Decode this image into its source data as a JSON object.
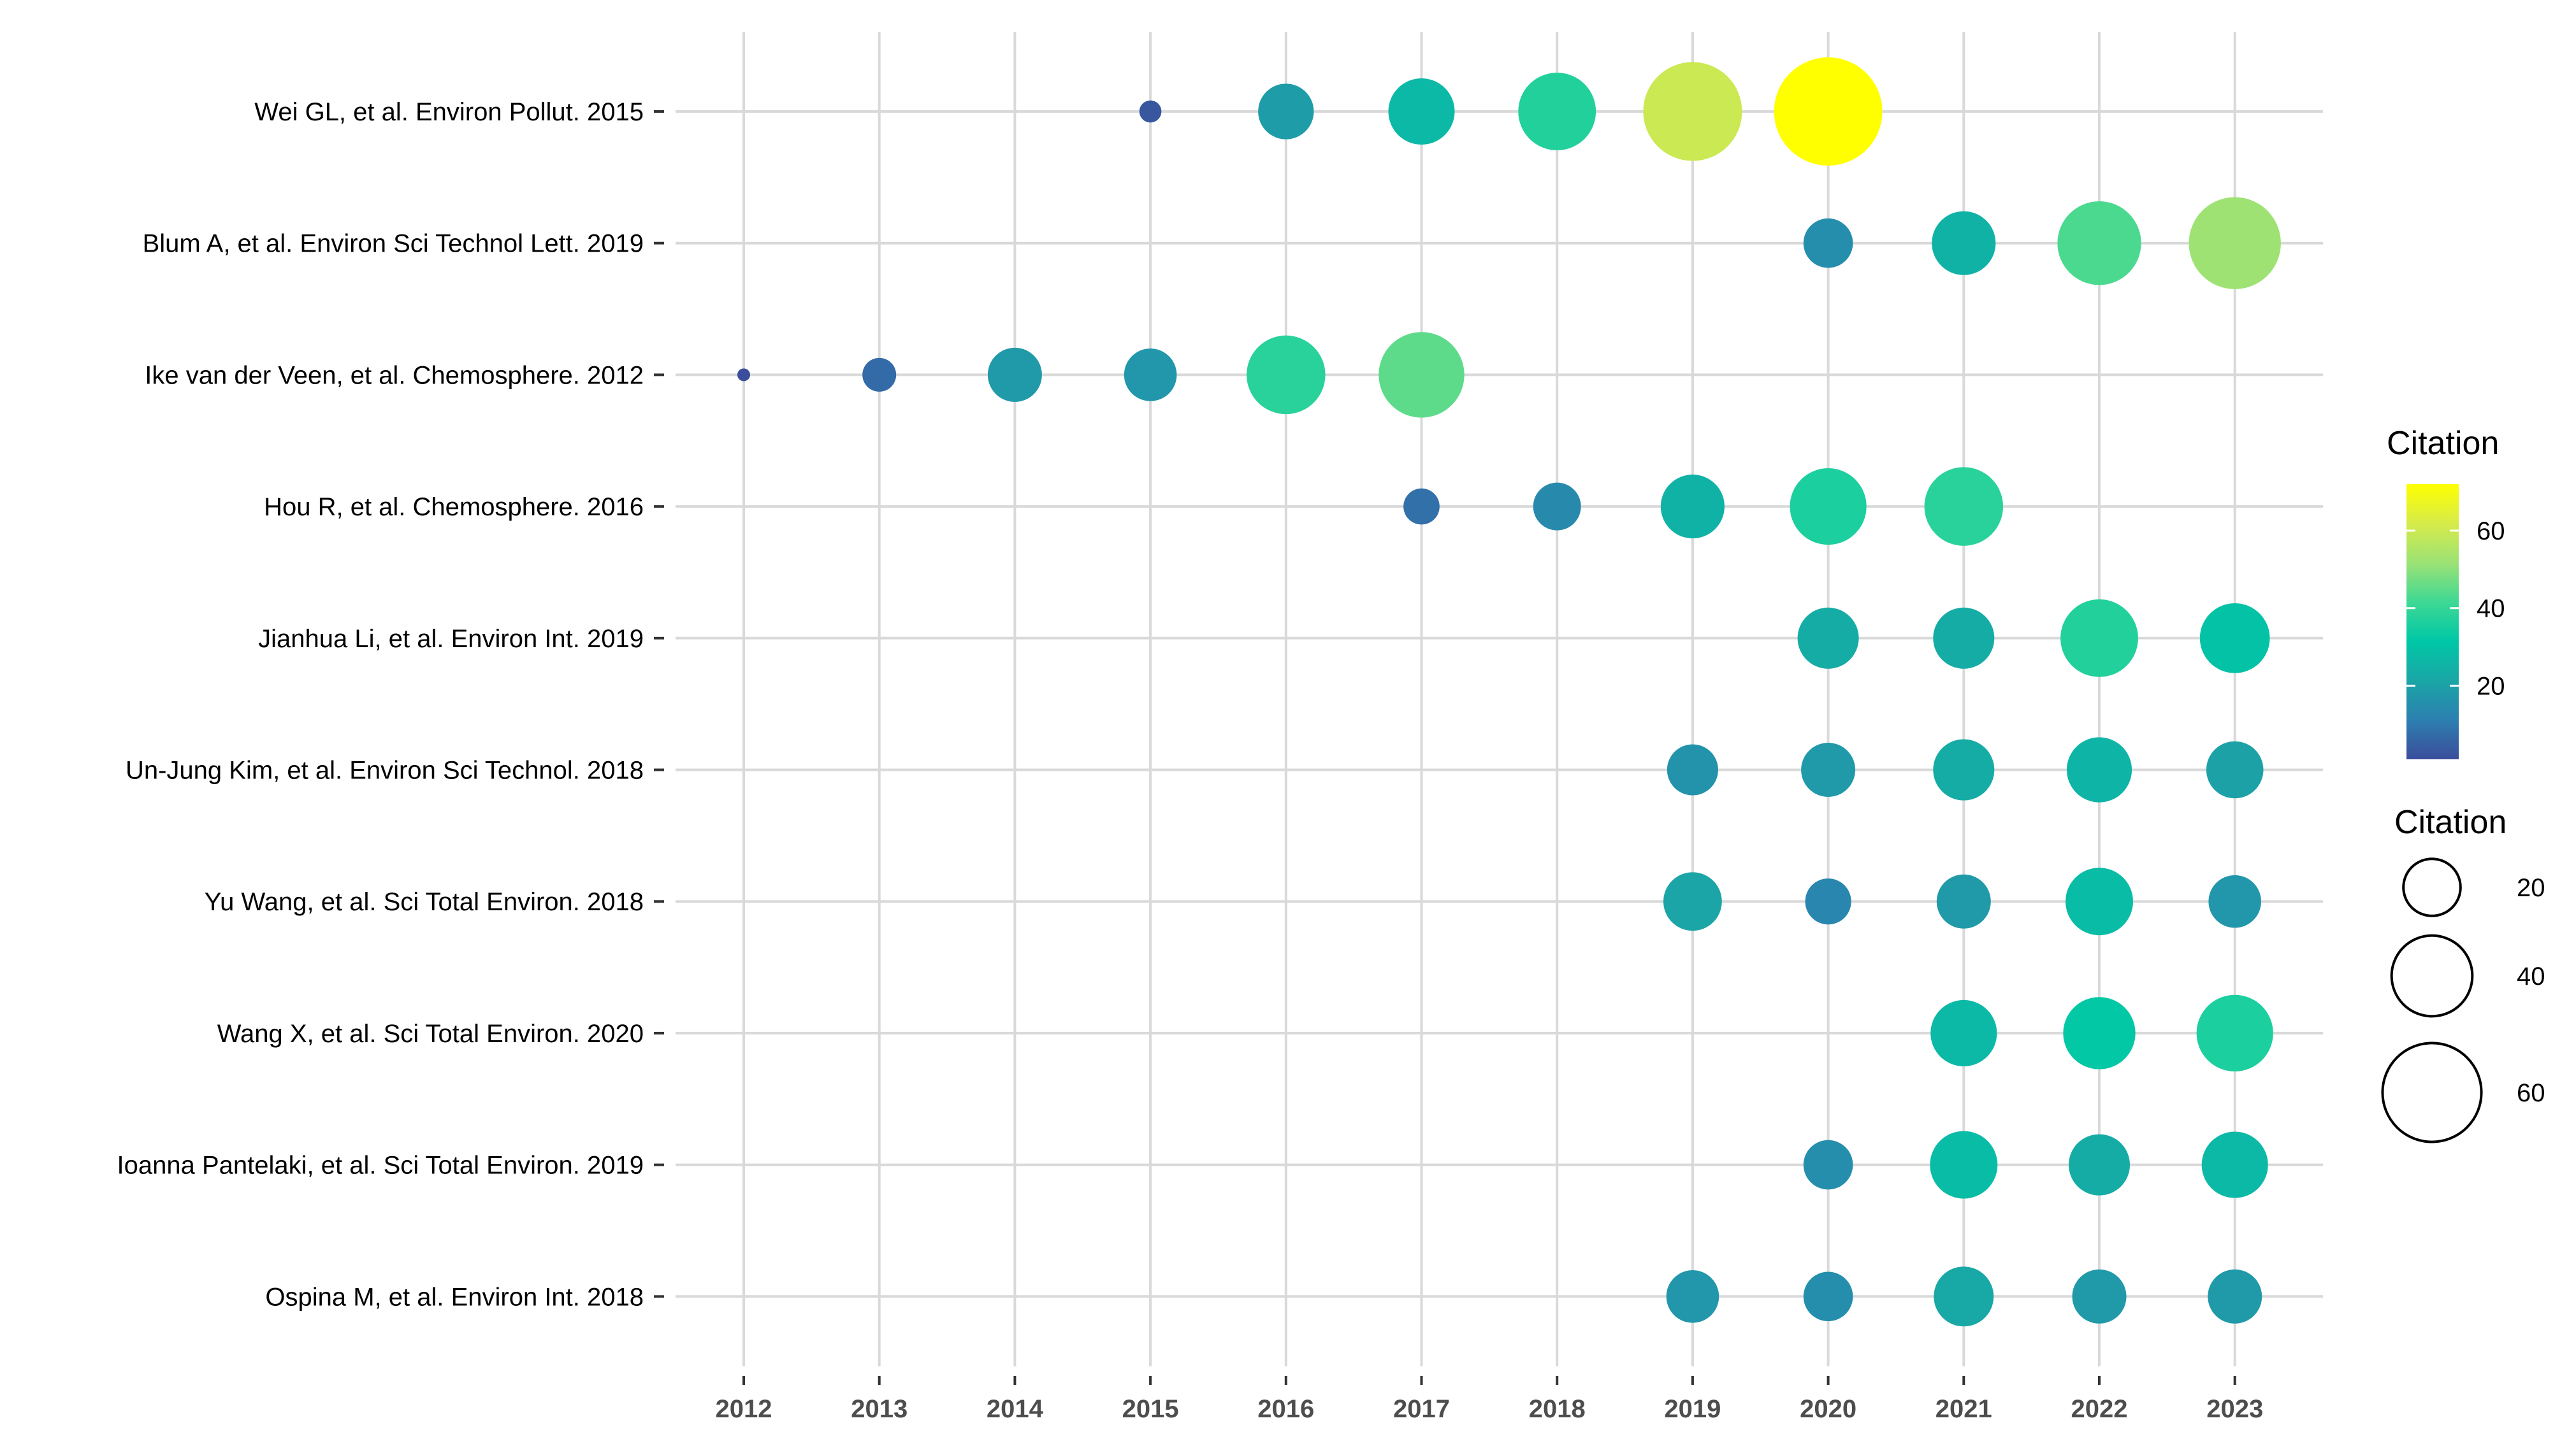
{
  "chart_data": {
    "type": "scatter",
    "title": "",
    "xlabel": "",
    "ylabel": "",
    "x_categories": [
      "2012",
      "2013",
      "2014",
      "2015",
      "2016",
      "2017",
      "2018",
      "2019",
      "2020",
      "2021",
      "2022",
      "2023"
    ],
    "y_categories": [
      "Wei GL, et al. Environ Pollut. 2015",
      "Blum A, et al. Environ Sci Technol Lett. 2019",
      "Ike van der Veen, et al. Chemosphere. 2012",
      "Hou R, et al. Chemosphere. 2016",
      "Jianhua Li, et al. Environ Int. 2019",
      "Un-Jung Kim, et al. Environ Sci Technol. 2018",
      "Yu Wang, et al. Sci Total Environ. 2018",
      "Wang X, et al. Sci Total Environ. 2020",
      "Ioanna Pantelaki, et al. Sci Total Environ. 2019",
      "Ospina M, et al. Environ Int. 2018"
    ],
    "grid": true,
    "size_and_color_variable": "Citation",
    "series": [
      {
        "paper": "Wei GL, et al. Environ Pollut. 2015",
        "points": [
          {
            "year": "2015",
            "citation": 3
          },
          {
            "year": "2016",
            "citation": 19
          },
          {
            "year": "2017",
            "citation": 27
          },
          {
            "year": "2018",
            "citation": 37
          },
          {
            "year": "2019",
            "citation": 60
          },
          {
            "year": "2020",
            "citation": 72
          }
        ]
      },
      {
        "paper": "Blum A, et al. Environ Sci Technol Lett. 2019",
        "points": [
          {
            "year": "2020",
            "citation": 15
          },
          {
            "year": "2021",
            "citation": 25
          },
          {
            "year": "2022",
            "citation": 43
          },
          {
            "year": "2023",
            "citation": 52
          }
        ]
      },
      {
        "paper": "Ike van der Veen, et al. Chemosphere. 2012",
        "points": [
          {
            "year": "2012",
            "citation": 1
          },
          {
            "year": "2013",
            "citation": 7
          },
          {
            "year": "2014",
            "citation": 18
          },
          {
            "year": "2015",
            "citation": 17
          },
          {
            "year": "2016",
            "citation": 38
          },
          {
            "year": "2017",
            "citation": 45
          }
        ]
      },
      {
        "paper": "Hou R, et al. Chemosphere. 2016",
        "points": [
          {
            "year": "2017",
            "citation": 8
          },
          {
            "year": "2018",
            "citation": 14
          },
          {
            "year": "2019",
            "citation": 25
          },
          {
            "year": "2020",
            "citation": 36
          },
          {
            "year": "2021",
            "citation": 38
          }
        ]
      },
      {
        "paper": "Jianhua Li, et al. Environ Int. 2019",
        "points": [
          {
            "year": "2020",
            "citation": 23
          },
          {
            "year": "2021",
            "citation": 23
          },
          {
            "year": "2022",
            "citation": 37
          },
          {
            "year": "2023",
            "citation": 30
          }
        ]
      },
      {
        "paper": "Un-Jung Kim, et al. Environ Sci Technol. 2018",
        "points": [
          {
            "year": "2019",
            "citation": 16
          },
          {
            "year": "2020",
            "citation": 18
          },
          {
            "year": "2021",
            "citation": 23
          },
          {
            "year": "2022",
            "citation": 26
          },
          {
            "year": "2023",
            "citation": 20
          }
        ]
      },
      {
        "paper": "Yu Wang, et al. Sci Total Environ. 2018",
        "points": [
          {
            "year": "2019",
            "citation": 21
          },
          {
            "year": "2020",
            "citation": 13
          },
          {
            "year": "2021",
            "citation": 18
          },
          {
            "year": "2022",
            "citation": 28
          },
          {
            "year": "2023",
            "citation": 17
          }
        ]
      },
      {
        "paper": "Wang X, et al. Sci Total Environ. 2020",
        "points": [
          {
            "year": "2021",
            "citation": 27
          },
          {
            "year": "2022",
            "citation": 32
          },
          {
            "year": "2023",
            "citation": 36
          }
        ]
      },
      {
        "paper": "Ioanna Pantelaki, et al. Sci Total Environ. 2019",
        "points": [
          {
            "year": "2020",
            "citation": 15
          },
          {
            "year": "2021",
            "citation": 28
          },
          {
            "year": "2022",
            "citation": 23
          },
          {
            "year": "2023",
            "citation": 27
          }
        ]
      },
      {
        "paper": "Ospina M, et al. Environ Int. 2018",
        "points": [
          {
            "year": "2019",
            "citation": 17
          },
          {
            "year": "2020",
            "citation": 15
          },
          {
            "year": "2021",
            "citation": 22
          },
          {
            "year": "2022",
            "citation": 18
          },
          {
            "year": "2023",
            "citation": 18
          }
        ]
      }
    ],
    "legend": {
      "color": {
        "title": "Citation",
        "ticks": [
          20,
          40,
          60
        ],
        "range": [
          1,
          72
        ],
        "colormap": "viridis-like"
      },
      "size": {
        "title": "Citation",
        "values": [
          20,
          40,
          60
        ]
      },
      "placement": "right"
    }
  },
  "colors": {
    "grid": "#d9d9d9",
    "background": "#ffffff",
    "colormap_stops": [
      "#3b4d9b",
      "#2c7fb0",
      "#1aa6a6",
      "#00c7a6",
      "#3ed894",
      "#9ce275",
      "#d6eb4a",
      "#ffff00"
    ]
  }
}
